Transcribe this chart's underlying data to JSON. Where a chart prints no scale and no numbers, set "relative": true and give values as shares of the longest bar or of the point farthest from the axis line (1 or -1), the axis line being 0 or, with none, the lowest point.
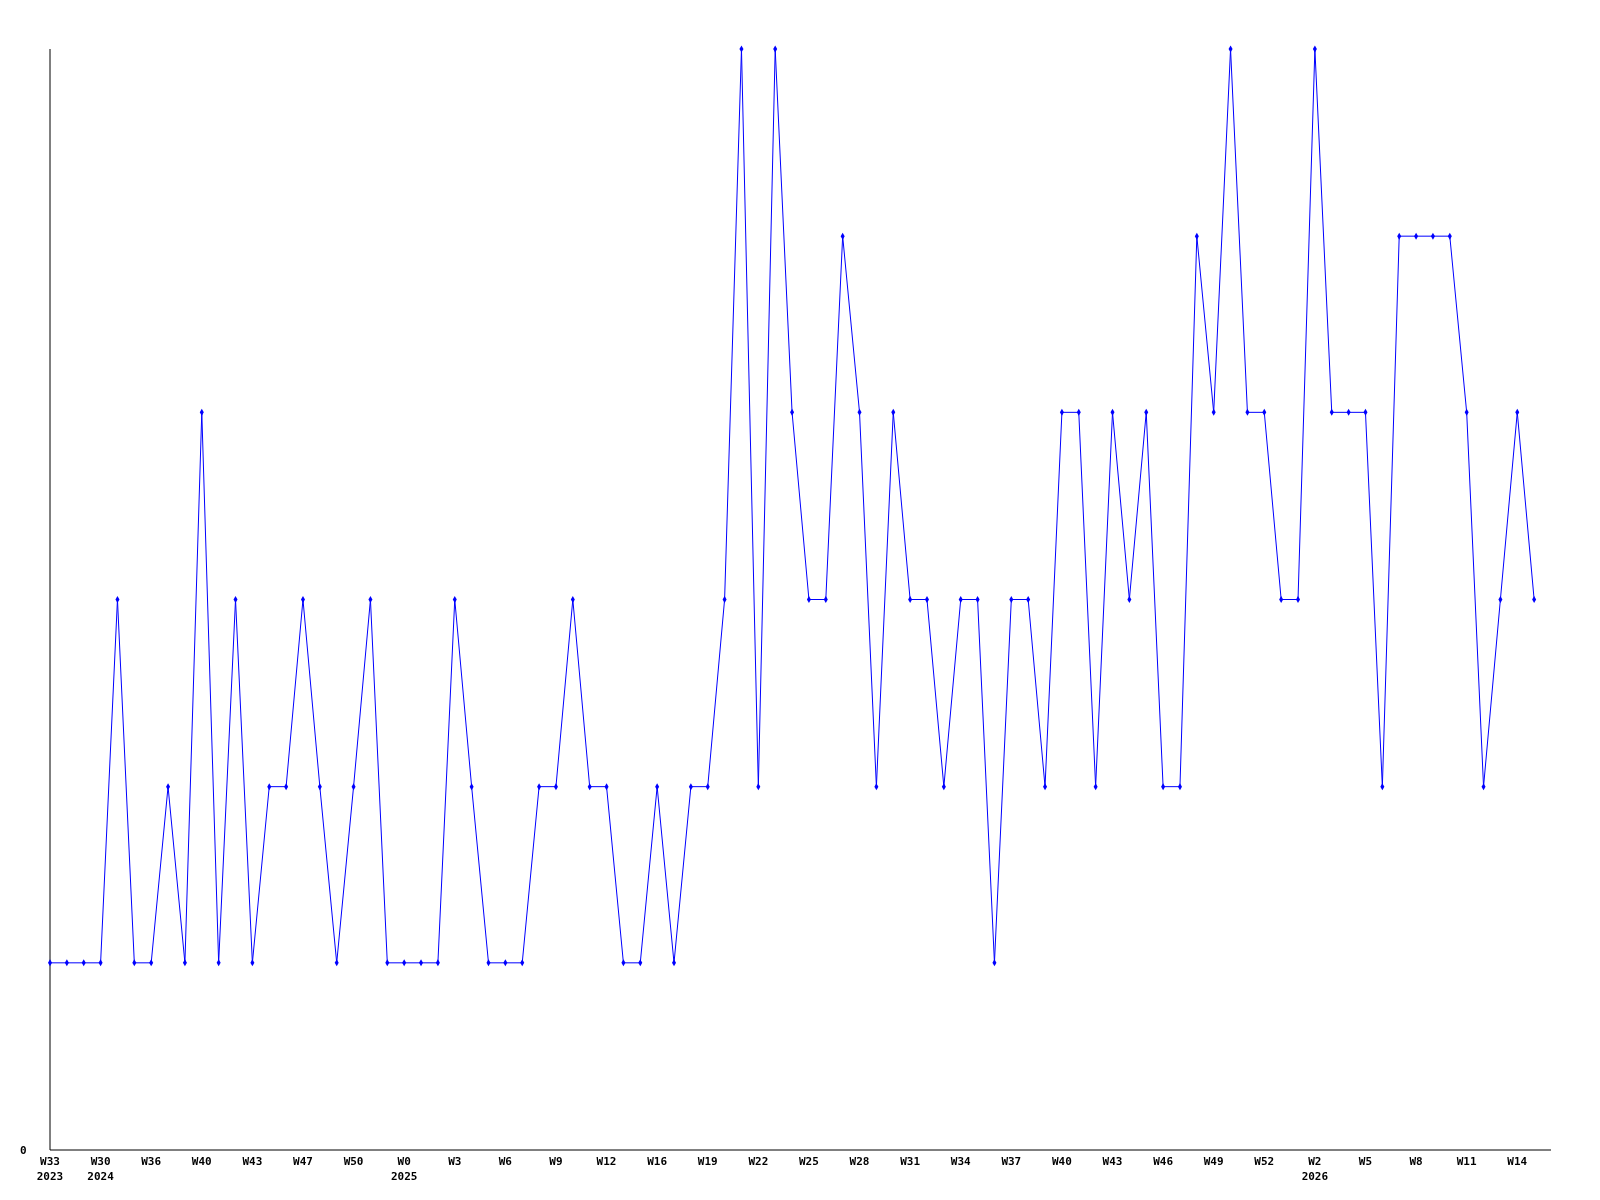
{
  "chart_data": {
    "type": "line",
    "relative": true,
    "marker": "diamond",
    "line_style": "solid",
    "grid": false,
    "annotations": [
      "0"
    ],
    "categories": [
      "W33\n2023",
      null,
      null,
      "W30\n2024",
      null,
      null,
      "W36",
      null,
      null,
      "W40",
      null,
      null,
      "W43",
      null,
      null,
      "W47",
      null,
      null,
      "W50",
      null,
      null,
      "W0\n2025",
      null,
      null,
      "W3",
      null,
      null,
      "W6",
      null,
      null,
      "W9",
      null,
      null,
      "W12",
      null,
      null,
      "W16",
      null,
      null,
      "W19",
      null,
      null,
      "W22",
      null,
      null,
      "W25",
      null,
      null,
      "W28",
      null,
      null,
      "W31",
      null,
      null,
      "W34",
      null,
      null,
      "W37",
      null,
      null,
      "W40",
      null,
      null,
      "W43",
      null,
      null,
      "W46",
      null,
      null,
      "W49",
      null,
      null,
      "W52",
      null,
      null,
      "W2\n2026",
      null,
      null,
      "W5",
      null,
      null,
      "W8",
      null,
      null,
      "W11",
      null,
      null,
      "W14",
      null
    ],
    "series": [
      {
        "color": "#0000ff",
        "values": [
          0.17,
          0.17,
          0.17,
          0.17,
          0.5,
          0.17,
          0.17,
          0.33,
          0.17,
          0.67,
          0.17,
          0.5,
          0.17,
          0.33,
          0.33,
          0.5,
          0.33,
          0.17,
          0.33,
          0.5,
          0.17,
          0.17,
          0.17,
          0.17,
          0.5,
          0.33,
          0.17,
          0.17,
          0.17,
          0.33,
          0.33,
          0.5,
          0.33,
          0.33,
          0.17,
          0.17,
          0.33,
          0.17,
          0.33,
          0.33,
          0.5,
          1,
          0.33,
          1,
          0.67,
          0.5,
          0.5,
          0.83,
          0.67,
          0.33,
          0.67,
          0.5,
          0.5,
          0.33,
          0.5,
          0.5,
          0.17,
          0.5,
          0.5,
          0.33,
          0.67,
          0.67,
          0.33,
          0.67,
          0.5,
          0.67,
          0.33,
          0.33,
          0.83,
          0.67,
          1,
          0.67,
          0.67,
          0.5,
          0.5,
          1,
          0.67,
          0.67,
          0.67,
          0.33,
          0.83,
          0.83,
          0.83,
          0.83,
          0.67,
          0.33,
          0.5,
          0.67,
          0.5
        ]
      }
    ]
  }
}
